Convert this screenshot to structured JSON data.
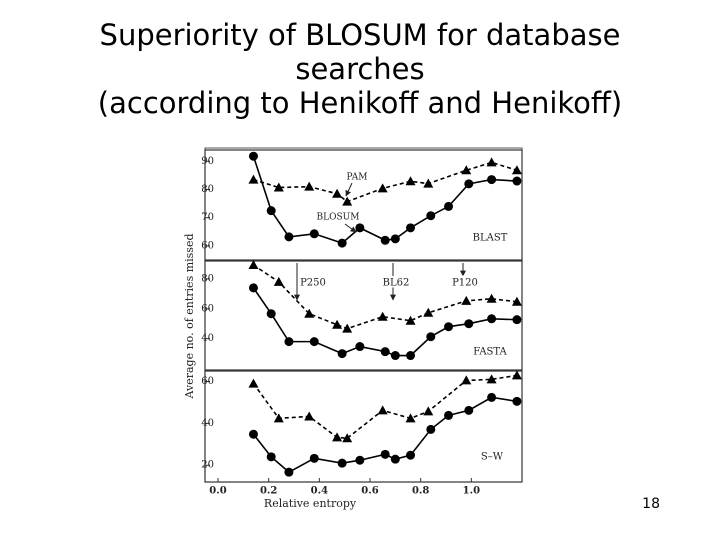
{
  "slide": {
    "title": [
      "Superiority of BLOSUM for database searches",
      "(according to Henikoff and Henikoff)"
    ],
    "page_number": 18
  },
  "figure": {
    "ylabel": "Average no. of entries missed"
  },
  "chart_data": [
    {
      "type": "line",
      "label": "BLAST",
      "xlim": [
        0,
        1.2
      ],
      "ylim": [
        55,
        94
      ],
      "yticks": [
        60,
        70,
        80,
        90
      ],
      "series": [
        {
          "name": "PAM",
          "marker": "triangle",
          "dashed": true,
          "color": "#000000",
          "x": [
            0.14,
            0.24,
            0.36,
            0.47,
            0.51,
            0.65,
            0.76,
            0.83,
            0.98,
            1.08,
            1.18
          ],
          "values": [
            83.5,
            80.7,
            81,
            78.5,
            75.7,
            80.4,
            82.9,
            82.1,
            86.8,
            89.6,
            86.8
          ]
        },
        {
          "name": "BLOSUM",
          "marker": "circle",
          "dashed": false,
          "color": "#000000",
          "x": [
            0.14,
            0.21,
            0.28,
            0.38,
            0.49,
            0.56,
            0.66,
            0.7,
            0.76,
            0.84,
            0.91,
            0.99,
            1.08,
            1.18
          ],
          "values": [
            91.8,
            72.5,
            63.2,
            64.3,
            61,
            66.4,
            62,
            62.5,
            66.4,
            70.7,
            74,
            82,
            83.5,
            83
          ]
        }
      ]
    },
    {
      "type": "line",
      "label": "FASTA",
      "xlim": [
        0,
        1.2
      ],
      "ylim": [
        19,
        92
      ],
      "yticks": [
        40,
        60,
        80
      ],
      "annotations": [
        "P250",
        "BL62",
        "P120"
      ],
      "series": [
        {
          "marker": "triangle",
          "dashed": true,
          "color": "#000000",
          "x": [
            0.14,
            0.24,
            0.36,
            0.47,
            0.51,
            0.65,
            0.76,
            0.83,
            0.98,
            1.08,
            1.18
          ],
          "values": [
            89.3,
            78,
            56.7,
            49.3,
            46.7,
            54.7,
            52,
            57.3,
            65.3,
            66.7,
            64.7
          ]
        },
        {
          "marker": "circle",
          "dashed": false,
          "color": "#000000",
          "x": [
            0.14,
            0.21,
            0.28,
            0.38,
            0.49,
            0.56,
            0.66,
            0.7,
            0.76,
            0.84,
            0.91,
            0.99,
            1.08,
            1.18
          ],
          "values": [
            74,
            56.7,
            38,
            38,
            30,
            34.7,
            31.3,
            28.7,
            28.7,
            41.3,
            48,
            50,
            53.3,
            52.7
          ]
        }
      ]
    },
    {
      "type": "line",
      "label": "S–W",
      "xlabel": "Relative entropy",
      "xlim": [
        0,
        1.2
      ],
      "ylim": [
        12,
        65
      ],
      "yticks": [
        20,
        40,
        60
      ],
      "xticks": [
        {
          "value": 0,
          "label": "0.0"
        },
        0.2,
        0.4,
        0.6,
        0.8,
        {
          "value": 1,
          "label": "1.0"
        }
      ],
      "series": [
        {
          "marker": "triangle",
          "dashed": true,
          "color": "#000000",
          "x": [
            0.14,
            0.24,
            0.36,
            0.47,
            0.51,
            0.65,
            0.76,
            0.83,
            0.98,
            1.08,
            1.18
          ],
          "values": [
            59,
            42.4,
            43.3,
            33.3,
            32.9,
            46.2,
            42.4,
            45.7,
            60.5,
            61,
            62.9
          ]
        },
        {
          "marker": "circle",
          "dashed": false,
          "color": "#000000",
          "x": [
            0.14,
            0.21,
            0.28,
            0.38,
            0.49,
            0.56,
            0.66,
            0.7,
            0.76,
            0.84,
            0.91,
            0.99,
            1.08,
            1.18
          ],
          "values": [
            34.8,
            24,
            16.7,
            23.3,
            21,
            22.4,
            25.2,
            22.9,
            24.8,
            37.1,
            43.8,
            46.2,
            52.4,
            50.5
          ]
        }
      ]
    }
  ]
}
